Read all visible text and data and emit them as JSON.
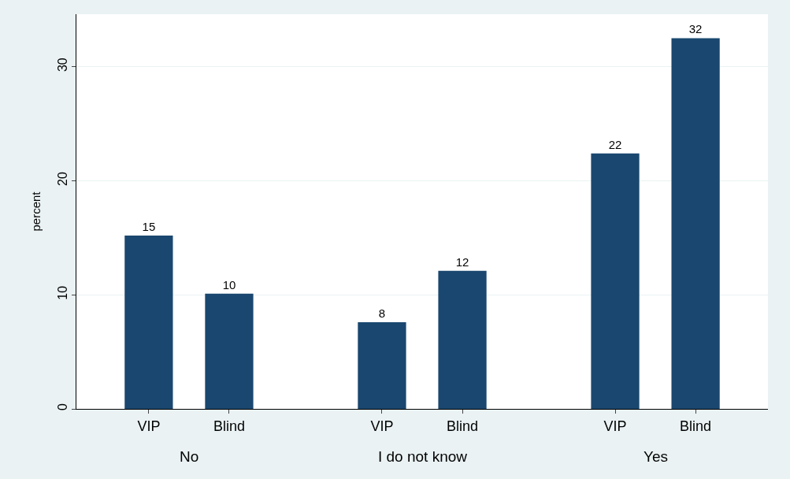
{
  "chart_data": {
    "type": "bar",
    "ylabel": "percent",
    "categories": [
      "VIP",
      "Blind",
      "VIP",
      "Blind",
      "VIP",
      "Blind"
    ],
    "values": [
      15.2,
      10.1,
      7.6,
      12.1,
      22.4,
      32.5
    ],
    "value_labels": [
      "15",
      "10",
      "8",
      "12",
      "22",
      "32"
    ],
    "color": "#1a476f",
    "ylim": [
      0,
      34.6
    ],
    "yticks": [
      0,
      10,
      20,
      30
    ],
    "grid": "y",
    "legend": false,
    "annotations": [
      "No",
      "I do not know",
      "Yes"
    ]
  }
}
